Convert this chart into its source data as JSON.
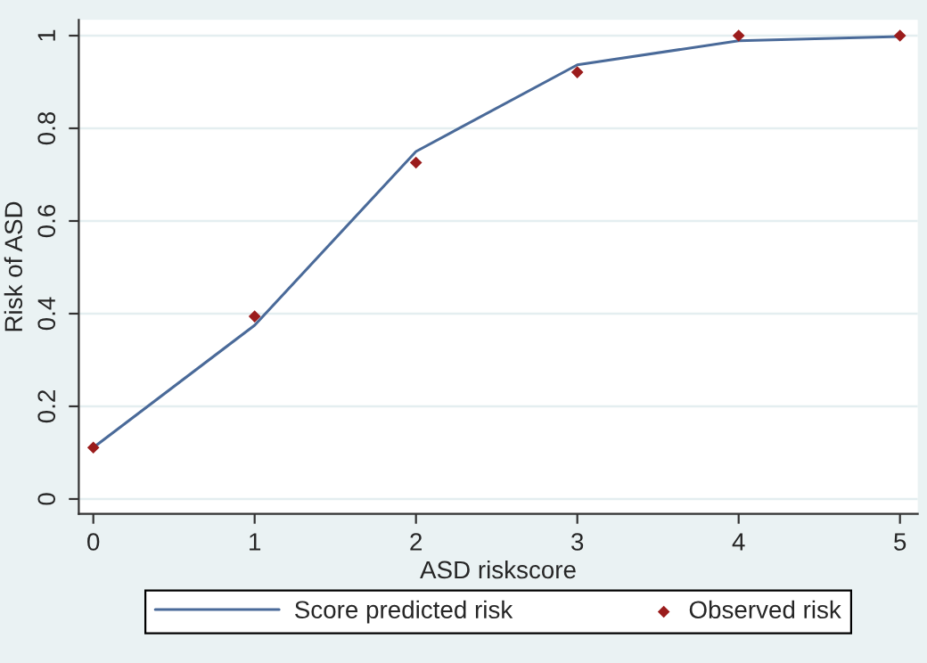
{
  "chart_data": {
    "type": "line",
    "xlabel": "ASD riskscore",
    "ylabel": "Risk of ASD",
    "x": [
      0,
      1,
      2,
      3,
      4,
      5
    ],
    "series": [
      {
        "name": "Score predicted risk",
        "color": "#4a6a99",
        "values": [
          0.111,
          0.375,
          0.75,
          0.937,
          0.989,
          0.998
        ],
        "marker": "none",
        "line_style": "solid"
      },
      {
        "name": "Observed risk",
        "type": "scatter",
        "color": "#9b1c1c",
        "values": [
          0.111,
          0.394,
          0.726,
          0.921,
          1.0,
          1.0
        ],
        "marker": "diamond"
      }
    ],
    "xlim": [
      -0.09,
      5.11
    ],
    "ylim": [
      -0.032,
      1.034
    ],
    "xticks": [
      0,
      1,
      2,
      3,
      4,
      5
    ],
    "yticks": [
      0,
      0.2,
      0.4,
      0.6,
      0.8,
      1
    ],
    "grid": "y",
    "legend": "bottom"
  }
}
